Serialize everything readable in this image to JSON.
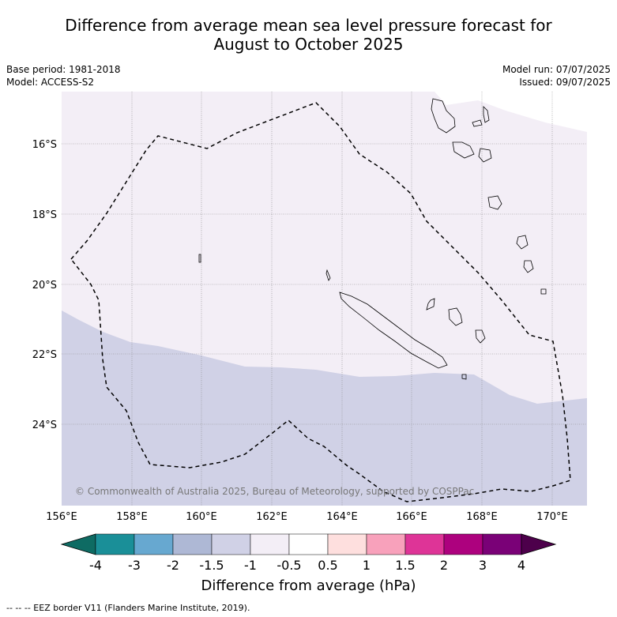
{
  "title_line1": "Difference from average mean sea level pressure forecast for",
  "title_line2": "August to October 2025",
  "meta_left": {
    "base_period": "Base period: 1981-2018",
    "model": "Model: ACCESS-S2"
  },
  "meta_right": {
    "model_run": "Model run: 07/07/2025",
    "issued": "Issued: 09/07/2025"
  },
  "copyright": "© Commonwealth of Australia 2025, Bureau of Meteorology, supported by COSPPac",
  "lon_ticks": [
    "156°E",
    "158°E",
    "160°E",
    "162°E",
    "164°E",
    "166°E",
    "168°E",
    "170°E"
  ],
  "lat_ticks": [
    "16°S",
    "18°S",
    "20°S",
    "22°S",
    "24°S"
  ],
  "colorbar": {
    "title": "Difference from average (hPa)",
    "tick_labels": [
      "-4",
      "-3",
      "-2",
      "-1.5",
      "-1",
      "-0.5",
      "0.5",
      "1",
      "1.5",
      "2",
      "3",
      "4"
    ],
    "colors": [
      "#0e6b63",
      "#1a8f98",
      "#67a8d0",
      "#aeb8d5",
      "#d0d1e6",
      "#f3eef6",
      "#ffffff",
      "#fedfde",
      "#f8a1bb",
      "#de3497",
      "#ad017e",
      "#7a0177",
      "#4d004b"
    ]
  },
  "legend_footer": "--  --  -- EEZ border V11 (Flanders Marine Institute, 2019)."
}
